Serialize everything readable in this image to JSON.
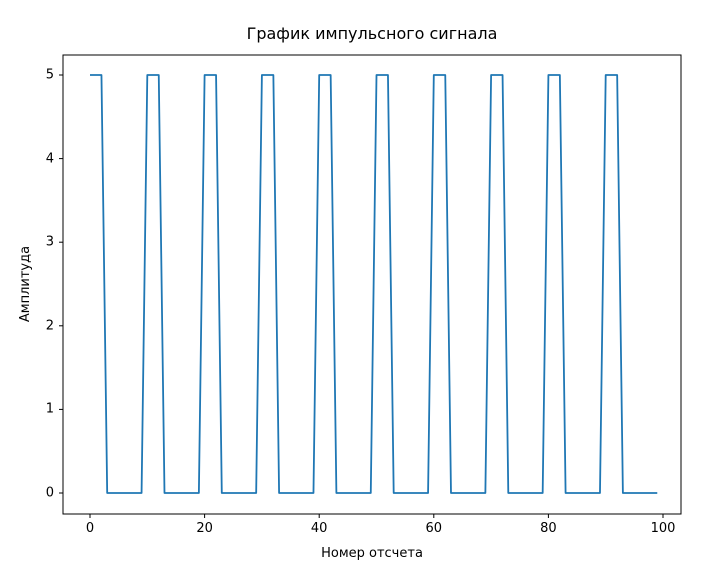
{
  "figure": {
    "background_color": "#ffffff",
    "spine_color": "#000000",
    "tick_color": "#000000"
  },
  "chart_data": {
    "type": "line",
    "title": "График импульсного сигнала",
    "xlabel": "Номер отсчета",
    "ylabel": "Амплитуда",
    "line_color": "#1f77b4",
    "grid": false,
    "legend": null,
    "xlim": [
      -5,
      104
    ],
    "ylim": [
      -0.25,
      5.25
    ],
    "x_ticks": [
      0,
      20,
      40,
      60,
      80,
      100
    ],
    "y_ticks": [
      0,
      1,
      2,
      3,
      4,
      5
    ],
    "description": "Periodic pulse train: amplitude 5 for samples n where n mod 10 is 0,1,2; amplitude 0 otherwise; n = 0..99",
    "x": [
      0,
      1,
      2,
      3,
      4,
      5,
      6,
      7,
      8,
      9,
      10,
      11,
      12,
      13,
      14,
      15,
      16,
      17,
      18,
      19,
      20,
      21,
      22,
      23,
      24,
      25,
      26,
      27,
      28,
      29,
      30,
      31,
      32,
      33,
      34,
      35,
      36,
      37,
      38,
      39,
      40,
      41,
      42,
      43,
      44,
      45,
      46,
      47,
      48,
      49,
      50,
      51,
      52,
      53,
      54,
      55,
      56,
      57,
      58,
      59,
      60,
      61,
      62,
      63,
      64,
      65,
      66,
      67,
      68,
      69,
      70,
      71,
      72,
      73,
      74,
      75,
      76,
      77,
      78,
      79,
      80,
      81,
      82,
      83,
      84,
      85,
      86,
      87,
      88,
      89,
      90,
      91,
      92,
      93,
      94,
      95,
      96,
      97,
      98,
      99
    ],
    "y": [
      5,
      5,
      5,
      0,
      0,
      0,
      0,
      0,
      0,
      0,
      5,
      5,
      5,
      0,
      0,
      0,
      0,
      0,
      0,
      0,
      5,
      5,
      5,
      0,
      0,
      0,
      0,
      0,
      0,
      0,
      5,
      5,
      5,
      0,
      0,
      0,
      0,
      0,
      0,
      0,
      5,
      5,
      5,
      0,
      0,
      0,
      0,
      0,
      0,
      0,
      5,
      5,
      5,
      0,
      0,
      0,
      0,
      0,
      0,
      0,
      5,
      5,
      5,
      0,
      0,
      0,
      0,
      0,
      0,
      0,
      5,
      5,
      5,
      0,
      0,
      0,
      0,
      0,
      0,
      0,
      5,
      5,
      5,
      0,
      0,
      0,
      0,
      0,
      0,
      0,
      5,
      5,
      5,
      0,
      0,
      0,
      0,
      0,
      0,
      0
    ]
  }
}
